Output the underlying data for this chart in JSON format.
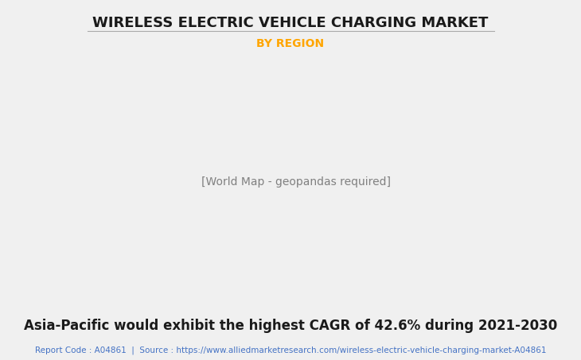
{
  "title": "WIRELESS ELECTRIC VEHICLE CHARGING MARKET",
  "subtitle": "BY REGION",
  "subtitle_color": "#FFA500",
  "annotation": "Asia-Pacific would exhibit the highest CAGR of 42.6% during 2021-2030",
  "footer": "Report Code : A04861  |  Source : https://www.alliedmarketresearch.com/wireless-electric-vehicle-charging-market-A04861",
  "footer_color": "#4472C4",
  "background_color": "#F0F0F0",
  "map_land_color": "#8FBC8F",
  "map_highlight_color": "#FFFFFF",
  "map_edge_color": "#A0B8D0",
  "map_shadow_color": "#A0A0A0",
  "title_fontsize": 13,
  "subtitle_fontsize": 10,
  "annotation_fontsize": 12,
  "footer_fontsize": 7.5,
  "title_color": "#1a1a1a",
  "annotation_color": "#1a1a1a"
}
